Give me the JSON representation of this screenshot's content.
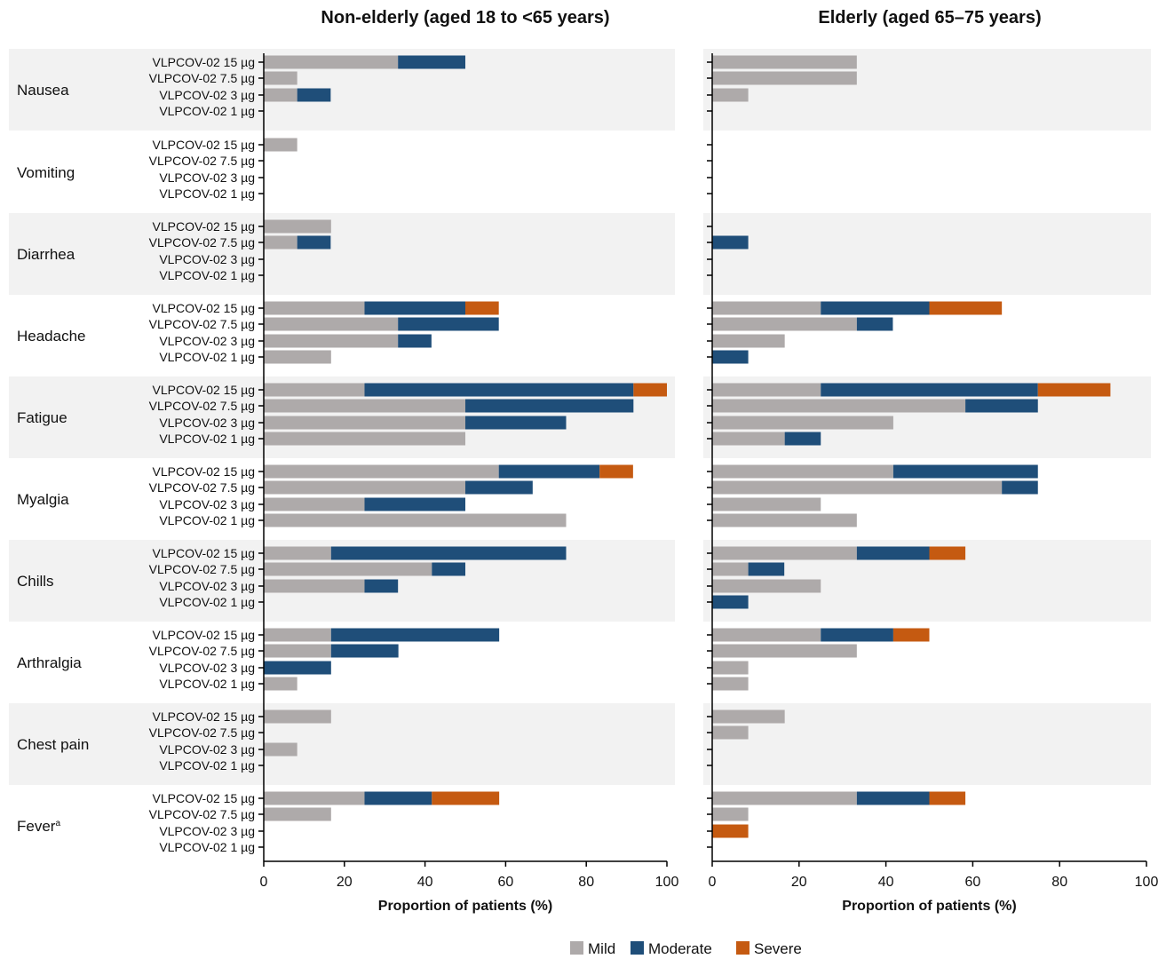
{
  "chart_data": {
    "type": "bar",
    "stacked": true,
    "orientation": "horizontal",
    "dose_labels": [
      "VLPCOV-02 15 µg",
      "VLPCOV-02 7.5 µg",
      "VLPCOV-02 3 µg",
      "VLPCOV-02 1 µg"
    ],
    "legend": [
      {
        "name": "Mild",
        "color": "#aeaaaa"
      },
      {
        "name": "Moderate",
        "color": "#1f4e79"
      },
      {
        "name": "Severe",
        "color": "#c55a11"
      }
    ],
    "legend_position": "bottom",
    "shading": {
      "band_color": "#f2f2f2"
    },
    "panels": [
      {
        "title": "Non-elderly (aged 18 to <65 years)",
        "xlabel": "Proportion of patients (%)",
        "xlim": [
          0,
          100
        ],
        "xticks": [
          0,
          20,
          40,
          60,
          80,
          100
        ],
        "groups": [
          {
            "name": "Nausea",
            "values": [
              [
                33.3,
                16.7,
                0
              ],
              [
                8.3,
                0,
                0
              ],
              [
                8.3,
                8.3,
                0
              ],
              [
                0,
                0,
                0
              ]
            ]
          },
          {
            "name": "Vomiting",
            "values": [
              [
                8.3,
                0,
                0
              ],
              [
                0,
                0,
                0
              ],
              [
                0,
                0,
                0
              ],
              [
                0,
                0,
                0
              ]
            ]
          },
          {
            "name": "Diarrhea",
            "values": [
              [
                16.7,
                0,
                0
              ],
              [
                8.3,
                8.3,
                0
              ],
              [
                0,
                0,
                0
              ],
              [
                0,
                0,
                0
              ]
            ]
          },
          {
            "name": "Headache",
            "values": [
              [
                25,
                25,
                8.3
              ],
              [
                33.3,
                25,
                0
              ],
              [
                33.3,
                8.3,
                0
              ],
              [
                16.7,
                0,
                0
              ]
            ]
          },
          {
            "name": "Fatigue",
            "values": [
              [
                25,
                66.7,
                8.3
              ],
              [
                50,
                41.7,
                0
              ],
              [
                50,
                25,
                0
              ],
              [
                50,
                0,
                0
              ]
            ]
          },
          {
            "name": "Myalgia",
            "values": [
              [
                58.3,
                25,
                8.3
              ],
              [
                50,
                16.7,
                0
              ],
              [
                25,
                25,
                0
              ],
              [
                75,
                0,
                0
              ]
            ]
          },
          {
            "name": "Chills",
            "values": [
              [
                16.7,
                58.3,
                0
              ],
              [
                41.7,
                8.3,
                0
              ],
              [
                25,
                8.3,
                0
              ],
              [
                0,
                0,
                0
              ]
            ]
          },
          {
            "name": "Arthralgia",
            "values": [
              [
                16.7,
                41.7,
                0
              ],
              [
                16.7,
                16.7,
                0
              ],
              [
                0,
                16.7,
                0
              ],
              [
                8.3,
                0,
                0
              ]
            ]
          },
          {
            "name": "Chest pain",
            "values": [
              [
                16.7,
                0,
                0
              ],
              [
                0,
                0,
                0
              ],
              [
                8.3,
                0,
                0
              ],
              [
                0,
                0,
                0
              ]
            ]
          },
          {
            "name": "Fever",
            "footnote": "a",
            "values": [
              [
                25,
                16.7,
                16.7
              ],
              [
                16.7,
                0,
                0
              ],
              [
                0,
                0,
                0
              ],
              [
                0,
                0,
                0
              ]
            ]
          }
        ]
      },
      {
        "title": "Elderly (aged 65–75 years)",
        "xlabel": "Proportion of patients (%)",
        "xlim": [
          0,
          100
        ],
        "xticks": [
          0,
          20,
          40,
          60,
          80,
          100
        ],
        "groups": [
          {
            "name": "Nausea",
            "values": [
              [
                33.3,
                0,
                0
              ],
              [
                33.3,
                0,
                0
              ],
              [
                8.3,
                0,
                0
              ],
              [
                0,
                0,
                0
              ]
            ]
          },
          {
            "name": "Vomiting",
            "values": [
              [
                0,
                0,
                0
              ],
              [
                0,
                0,
                0
              ],
              [
                0,
                0,
                0
              ],
              [
                0,
                0,
                0
              ]
            ]
          },
          {
            "name": "Diarrhea",
            "values": [
              [
                0,
                0,
                0
              ],
              [
                0,
                8.3,
                0
              ],
              [
                0,
                0,
                0
              ],
              [
                0,
                0,
                0
              ]
            ]
          },
          {
            "name": "Headache",
            "values": [
              [
                25,
                25,
                16.7
              ],
              [
                33.3,
                8.3,
                0
              ],
              [
                16.7,
                0,
                0
              ],
              [
                0,
                8.3,
                0
              ]
            ]
          },
          {
            "name": "Fatigue",
            "values": [
              [
                25,
                50,
                16.7
              ],
              [
                58.3,
                16.7,
                0
              ],
              [
                41.7,
                0,
                0
              ],
              [
                16.7,
                8.3,
                0
              ]
            ]
          },
          {
            "name": "Myalgia",
            "values": [
              [
                41.7,
                33.3,
                0
              ],
              [
                66.7,
                8.3,
                0
              ],
              [
                25,
                0,
                0
              ],
              [
                33.3,
                0,
                0
              ]
            ]
          },
          {
            "name": "Chills",
            "values": [
              [
                33.3,
                16.7,
                8.3
              ],
              [
                8.3,
                8.3,
                0
              ],
              [
                25,
                0,
                0
              ],
              [
                0,
                8.3,
                0
              ]
            ]
          },
          {
            "name": "Arthralgia",
            "values": [
              [
                25,
                16.7,
                8.3
              ],
              [
                33.3,
                0,
                0
              ],
              [
                8.3,
                0,
                0
              ],
              [
                8.3,
                0,
                0
              ]
            ]
          },
          {
            "name": "Chest pain",
            "values": [
              [
                16.7,
                0,
                0
              ],
              [
                8.3,
                0,
                0
              ],
              [
                0,
                0,
                0
              ],
              [
                0,
                0,
                0
              ]
            ]
          },
          {
            "name": "Fever",
            "footnote": "a",
            "values": [
              [
                33.3,
                16.7,
                8.3
              ],
              [
                8.3,
                0,
                0
              ],
              [
                0,
                0,
                8.3
              ],
              [
                0,
                0,
                0
              ]
            ]
          }
        ]
      }
    ]
  }
}
